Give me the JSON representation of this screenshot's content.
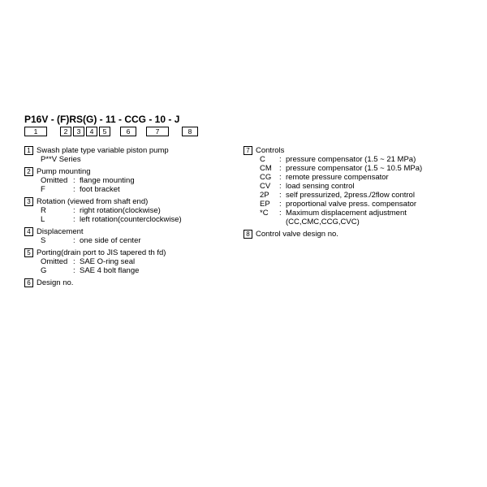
{
  "model": "P16V - (F)RS(G) - 11 - CCG - 10 - J",
  "positions": [
    "1",
    "2",
    "3",
    "4",
    "5",
    "6",
    "7",
    "8"
  ],
  "left": [
    {
      "num": "1",
      "title": "Swash plate type variable piston pump",
      "body_plain": [
        "P**V Series"
      ]
    },
    {
      "num": "2",
      "title": "Pump mounting",
      "body_rows": [
        {
          "code": "Omitted",
          "desc": "flange mounting"
        },
        {
          "code": "F",
          "desc": "foot bracket"
        }
      ]
    },
    {
      "num": "3",
      "title": "Rotation (viewed from shaft end)",
      "body_rows": [
        {
          "code": "R",
          "desc": "right rotation(clockwise)"
        },
        {
          "code": "L",
          "desc": "left rotation(counterclockwise)"
        }
      ]
    },
    {
      "num": "4",
      "title": "Displacement",
      "body_rows": [
        {
          "code": "S",
          "desc": "one side of center"
        }
      ]
    },
    {
      "num": "5",
      "title": "Porting(drain port to JIS tapered th  fd)",
      "body_rows": [
        {
          "code": "Omitted",
          "desc": "SAE O-ring seal"
        },
        {
          "code": "G",
          "desc": "SAE 4 bolt flange"
        }
      ]
    },
    {
      "num": "6",
      "title": "Design no."
    }
  ],
  "right": [
    {
      "num": "7",
      "title": "Controls",
      "body_rows": [
        {
          "code": "C",
          "desc": "pressure compensator (1.5 ~ 21 MPa)"
        },
        {
          "code": "CM",
          "desc": "pressure compensator (1.5 ~ 10.5 MPa)"
        },
        {
          "code": "CG",
          "desc": "remote pressure compensator"
        },
        {
          "code": "CV",
          "desc": "load sensing control"
        },
        {
          "code": "2P",
          "desc": "self pressurized, 2press./2flow control"
        },
        {
          "code": "EP",
          "desc": "proportional valve press. compensator"
        },
        {
          "code": "*C",
          "desc": "Maximum displacement adjustment"
        }
      ],
      "body_plain_after": [
        "(CC,CMC,CCG,CVC)"
      ]
    },
    {
      "num": "8",
      "title": "Control valve design no."
    }
  ]
}
